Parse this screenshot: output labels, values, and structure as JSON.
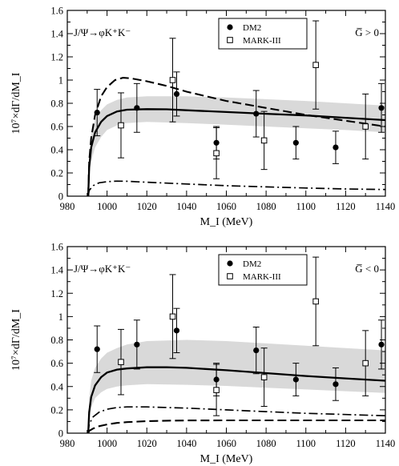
{
  "chart_data": [
    {
      "type": "scatter",
      "process_label": "J/Ψ→φK⁺K⁻",
      "g_label": "G̅ > 0",
      "xlabel": "M_I (MeV)",
      "ylabel": "10⁷×dΓ/dM_I",
      "xlim": [
        980,
        1140
      ],
      "ylim": [
        0,
        1.6
      ],
      "xticks": [
        "980",
        "1000",
        "1020",
        "1040",
        "1060",
        "1080",
        "1100",
        "1120",
        "1140"
      ],
      "yticks": [
        "0",
        "0.2",
        "0.4",
        "0.6",
        "0.8",
        "1",
        "1.2",
        "1.4",
        "1.6"
      ],
      "grid": false,
      "legend_position": "top-right",
      "series": [
        {
          "name": "DM2",
          "marker": "filled-circle",
          "points": [
            {
              "x": 995,
              "y": 0.72,
              "err": 0.2
            },
            {
              "x": 1015,
              "y": 0.76,
              "err": 0.21
            },
            {
              "x": 1035,
              "y": 0.88,
              "err": 0.19
            },
            {
              "x": 1055,
              "y": 0.46,
              "err": 0.14
            },
            {
              "x": 1075,
              "y": 0.71,
              "err": 0.2
            },
            {
              "x": 1095,
              "y": 0.46,
              "err": 0.14
            },
            {
              "x": 1115,
              "y": 0.42,
              "err": 0.14
            },
            {
              "x": 1138,
              "y": 0.76,
              "err": 0.21
            }
          ]
        },
        {
          "name": "MARK-III",
          "marker": "open-square",
          "points": [
            {
              "x": 1007,
              "y": 0.61,
              "err": 0.28
            },
            {
              "x": 1033,
              "y": 1.0,
              "err": 0.36
            },
            {
              "x": 1055,
              "y": 0.37,
              "err": 0.22
            },
            {
              "x": 1079,
              "y": 0.48,
              "err": 0.25
            },
            {
              "x": 1105,
              "y": 1.13,
              "err": 0.38
            },
            {
              "x": 1130,
              "y": 0.6,
              "err": 0.28
            }
          ]
        }
      ],
      "curves": [
        {
          "style": "solid",
          "x": [
            990.5,
            991,
            992,
            994,
            997,
            1000,
            1005,
            1010,
            1020,
            1030,
            1040,
            1060,
            1080,
            1100,
            1120,
            1140
          ],
          "y": [
            0,
            0.25,
            0.42,
            0.55,
            0.64,
            0.69,
            0.73,
            0.745,
            0.75,
            0.748,
            0.74,
            0.725,
            0.71,
            0.695,
            0.675,
            0.655
          ]
        },
        {
          "style": "dashed",
          "x": [
            990.5,
            991,
            992,
            994,
            997,
            1000,
            1004,
            1008,
            1012,
            1020,
            1030,
            1040,
            1060,
            1080,
            1100,
            1120,
            1140
          ],
          "y": [
            0,
            0.3,
            0.5,
            0.7,
            0.86,
            0.94,
            1.0,
            1.02,
            1.015,
            0.99,
            0.95,
            0.9,
            0.82,
            0.76,
            0.7,
            0.65,
            0.6
          ]
        },
        {
          "style": "dash-dot",
          "x": [
            990.5,
            991,
            993,
            996,
            1000,
            1005,
            1010,
            1020,
            1040,
            1060,
            1080,
            1100,
            1120,
            1140
          ],
          "y": [
            0,
            0.05,
            0.09,
            0.115,
            0.125,
            0.13,
            0.128,
            0.12,
            0.105,
            0.09,
            0.08,
            0.07,
            0.062,
            0.057
          ]
        }
      ],
      "band": {
        "x": [
          990.5,
          991,
          992,
          994,
          997,
          1000,
          1005,
          1010,
          1020,
          1040,
          1060,
          1080,
          1100,
          1120,
          1140
        ],
        "lower": [
          0,
          0.18,
          0.3,
          0.42,
          0.51,
          0.57,
          0.61,
          0.63,
          0.64,
          0.63,
          0.615,
          0.6,
          0.585,
          0.57,
          0.55
        ],
        "upper": [
          0,
          0.32,
          0.53,
          0.66,
          0.74,
          0.79,
          0.83,
          0.85,
          0.86,
          0.86,
          0.85,
          0.835,
          0.82,
          0.8,
          0.78
        ]
      }
    },
    {
      "type": "scatter",
      "process_label": "J/Ψ→φK⁺K⁻",
      "g_label": "G̅ < 0",
      "xlabel": "M_I (MeV)",
      "ylabel": "10⁷×dΓ/dM_I",
      "xlim": [
        980,
        1140
      ],
      "ylim": [
        0,
        1.6
      ],
      "xticks": [
        "980",
        "1000",
        "1020",
        "1040",
        "1060",
        "1080",
        "1100",
        "1120",
        "1140"
      ],
      "yticks": [
        "0",
        "0.2",
        "0.4",
        "0.6",
        "0.8",
        "1",
        "1.2",
        "1.4",
        "1.6"
      ],
      "grid": false,
      "legend_position": "top-right",
      "series": [
        {
          "name": "DM2",
          "marker": "filled-circle",
          "points": [
            {
              "x": 995,
              "y": 0.72,
              "err": 0.2
            },
            {
              "x": 1015,
              "y": 0.76,
              "err": 0.21
            },
            {
              "x": 1035,
              "y": 0.88,
              "err": 0.19
            },
            {
              "x": 1055,
              "y": 0.46,
              "err": 0.14
            },
            {
              "x": 1075,
              "y": 0.71,
              "err": 0.2
            },
            {
              "x": 1095,
              "y": 0.46,
              "err": 0.14
            },
            {
              "x": 1115,
              "y": 0.42,
              "err": 0.14
            },
            {
              "x": 1138,
              "y": 0.76,
              "err": 0.21
            }
          ]
        },
        {
          "name": "MARK-III",
          "marker": "open-square",
          "points": [
            {
              "x": 1007,
              "y": 0.61,
              "err": 0.28
            },
            {
              "x": 1033,
              "y": 1.0,
              "err": 0.36
            },
            {
              "x": 1055,
              "y": 0.37,
              "err": 0.22
            },
            {
              "x": 1079,
              "y": 0.48,
              "err": 0.25
            },
            {
              "x": 1105,
              "y": 1.13,
              "err": 0.38
            },
            {
              "x": 1130,
              "y": 0.6,
              "err": 0.28
            }
          ]
        }
      ],
      "curves": [
        {
          "style": "solid",
          "x": [
            990.5,
            991,
            992,
            994,
            997,
            1000,
            1005,
            1010,
            1020,
            1030,
            1040,
            1060,
            1080,
            1100,
            1120,
            1140
          ],
          "y": [
            0,
            0.18,
            0.31,
            0.41,
            0.48,
            0.52,
            0.545,
            0.555,
            0.565,
            0.565,
            0.56,
            0.54,
            0.515,
            0.49,
            0.47,
            0.45
          ]
        },
        {
          "style": "dashed",
          "x": [
            990.5,
            991,
            993,
            996,
            1000,
            1005,
            1010,
            1020,
            1030,
            1040,
            1060,
            1080,
            1100,
            1120,
            1140
          ],
          "y": [
            0,
            0.02,
            0.04,
            0.06,
            0.075,
            0.088,
            0.095,
            0.103,
            0.107,
            0.109,
            0.11,
            0.11,
            0.11,
            0.11,
            0.11
          ]
        },
        {
          "style": "dash-dot",
          "x": [
            990.5,
            991,
            993,
            996,
            1000,
            1005,
            1010,
            1020,
            1040,
            1060,
            1080,
            1100,
            1120,
            1140
          ],
          "y": [
            0,
            0.08,
            0.14,
            0.18,
            0.205,
            0.22,
            0.225,
            0.225,
            0.215,
            0.2,
            0.185,
            0.17,
            0.16,
            0.15
          ]
        }
      ],
      "band": {
        "x": [
          990.5,
          991,
          992,
          994,
          997,
          1000,
          1005,
          1010,
          1020,
          1040,
          1060,
          1080,
          1100,
          1120,
          1140
        ],
        "lower": [
          0,
          0.12,
          0.22,
          0.3,
          0.35,
          0.38,
          0.4,
          0.41,
          0.42,
          0.415,
          0.405,
          0.39,
          0.375,
          0.36,
          0.345
        ],
        "upper": [
          0,
          0.3,
          0.45,
          0.56,
          0.64,
          0.69,
          0.73,
          0.76,
          0.79,
          0.8,
          0.79,
          0.77,
          0.75,
          0.73,
          0.71
        ]
      }
    }
  ]
}
